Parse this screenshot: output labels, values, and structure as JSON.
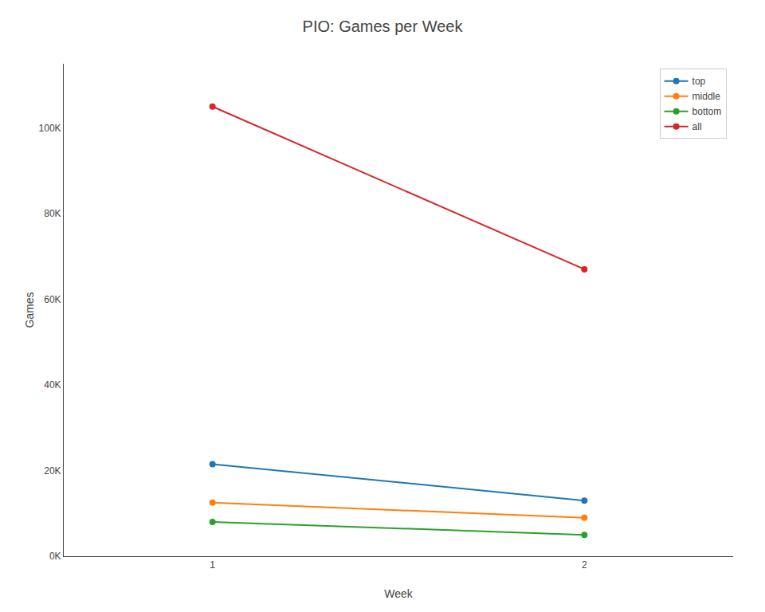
{
  "chart_data": {
    "type": "line",
    "title": "PIO: Games per Week",
    "xlabel": "Week",
    "ylabel": "Games",
    "x": [
      1,
      2
    ],
    "series": [
      {
        "name": "top",
        "values": [
          21500,
          13000
        ],
        "color": "#1f77b4",
        "marker": "circle"
      },
      {
        "name": "middle",
        "values": [
          12500,
          9000
        ],
        "color": "#ff7f0e",
        "marker": "circle"
      },
      {
        "name": "bottom",
        "values": [
          8000,
          5000
        ],
        "color": "#2ca02c",
        "marker": "circle"
      },
      {
        "name": "all",
        "values": [
          105000,
          67000
        ],
        "color": "#d62728",
        "marker": "circle"
      }
    ],
    "xlim": [
      0.6,
      2.4
    ],
    "xticks": [
      1,
      2
    ],
    "ylim": [
      0,
      115000
    ],
    "yticks": [
      {
        "value": 0,
        "label": "0K"
      },
      {
        "value": 20000,
        "label": "20K"
      },
      {
        "value": 40000,
        "label": "40K"
      },
      {
        "value": 60000,
        "label": "60K"
      },
      {
        "value": 80000,
        "label": "80K"
      },
      {
        "value": 100000,
        "label": "100K"
      }
    ],
    "grid": false,
    "legend": "upper right"
  }
}
